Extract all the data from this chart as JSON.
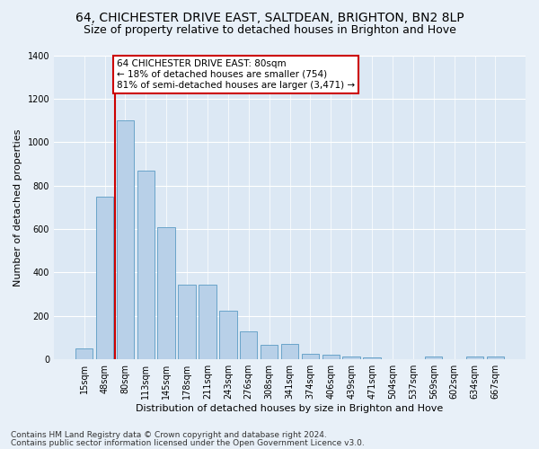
{
  "title": "64, CHICHESTER DRIVE EAST, SALTDEAN, BRIGHTON, BN2 8LP",
  "subtitle": "Size of property relative to detached houses in Brighton and Hove",
  "xlabel": "Distribution of detached houses by size in Brighton and Hove",
  "ylabel": "Number of detached properties",
  "footer1": "Contains HM Land Registry data © Crown copyright and database right 2024.",
  "footer2": "Contains public sector information licensed under the Open Government Licence v3.0.",
  "categories": [
    "15sqm",
    "48sqm",
    "80sqm",
    "113sqm",
    "145sqm",
    "178sqm",
    "211sqm",
    "243sqm",
    "276sqm",
    "308sqm",
    "341sqm",
    "374sqm",
    "406sqm",
    "439sqm",
    "471sqm",
    "504sqm",
    "537sqm",
    "569sqm",
    "602sqm",
    "634sqm",
    "667sqm"
  ],
  "values": [
    52,
    750,
    1100,
    870,
    610,
    345,
    345,
    225,
    130,
    68,
    73,
    27,
    20,
    15,
    10,
    0,
    0,
    12,
    0,
    13,
    12
  ],
  "bar_color": "#b8d0e8",
  "bar_edge_color": "#5a9bc4",
  "highlight_x": "80sqm",
  "highlight_line_color": "#cc0000",
  "annotation_text": "64 CHICHESTER DRIVE EAST: 80sqm\n← 18% of detached houses are smaller (754)\n81% of semi-detached houses are larger (3,471) →",
  "annotation_box_color": "#ffffff",
  "annotation_border_color": "#cc0000",
  "ylim": [
    0,
    1400
  ],
  "yticks": [
    0,
    200,
    400,
    600,
    800,
    1000,
    1200,
    1400
  ],
  "bg_color": "#e8f0f8",
  "plot_bg_color": "#dce8f4",
  "grid_color": "#ffffff",
  "title_fontsize": 10,
  "subtitle_fontsize": 9,
  "axis_label_fontsize": 8,
  "tick_fontsize": 7,
  "annotation_fontsize": 7.5,
  "footer_fontsize": 6.5
}
